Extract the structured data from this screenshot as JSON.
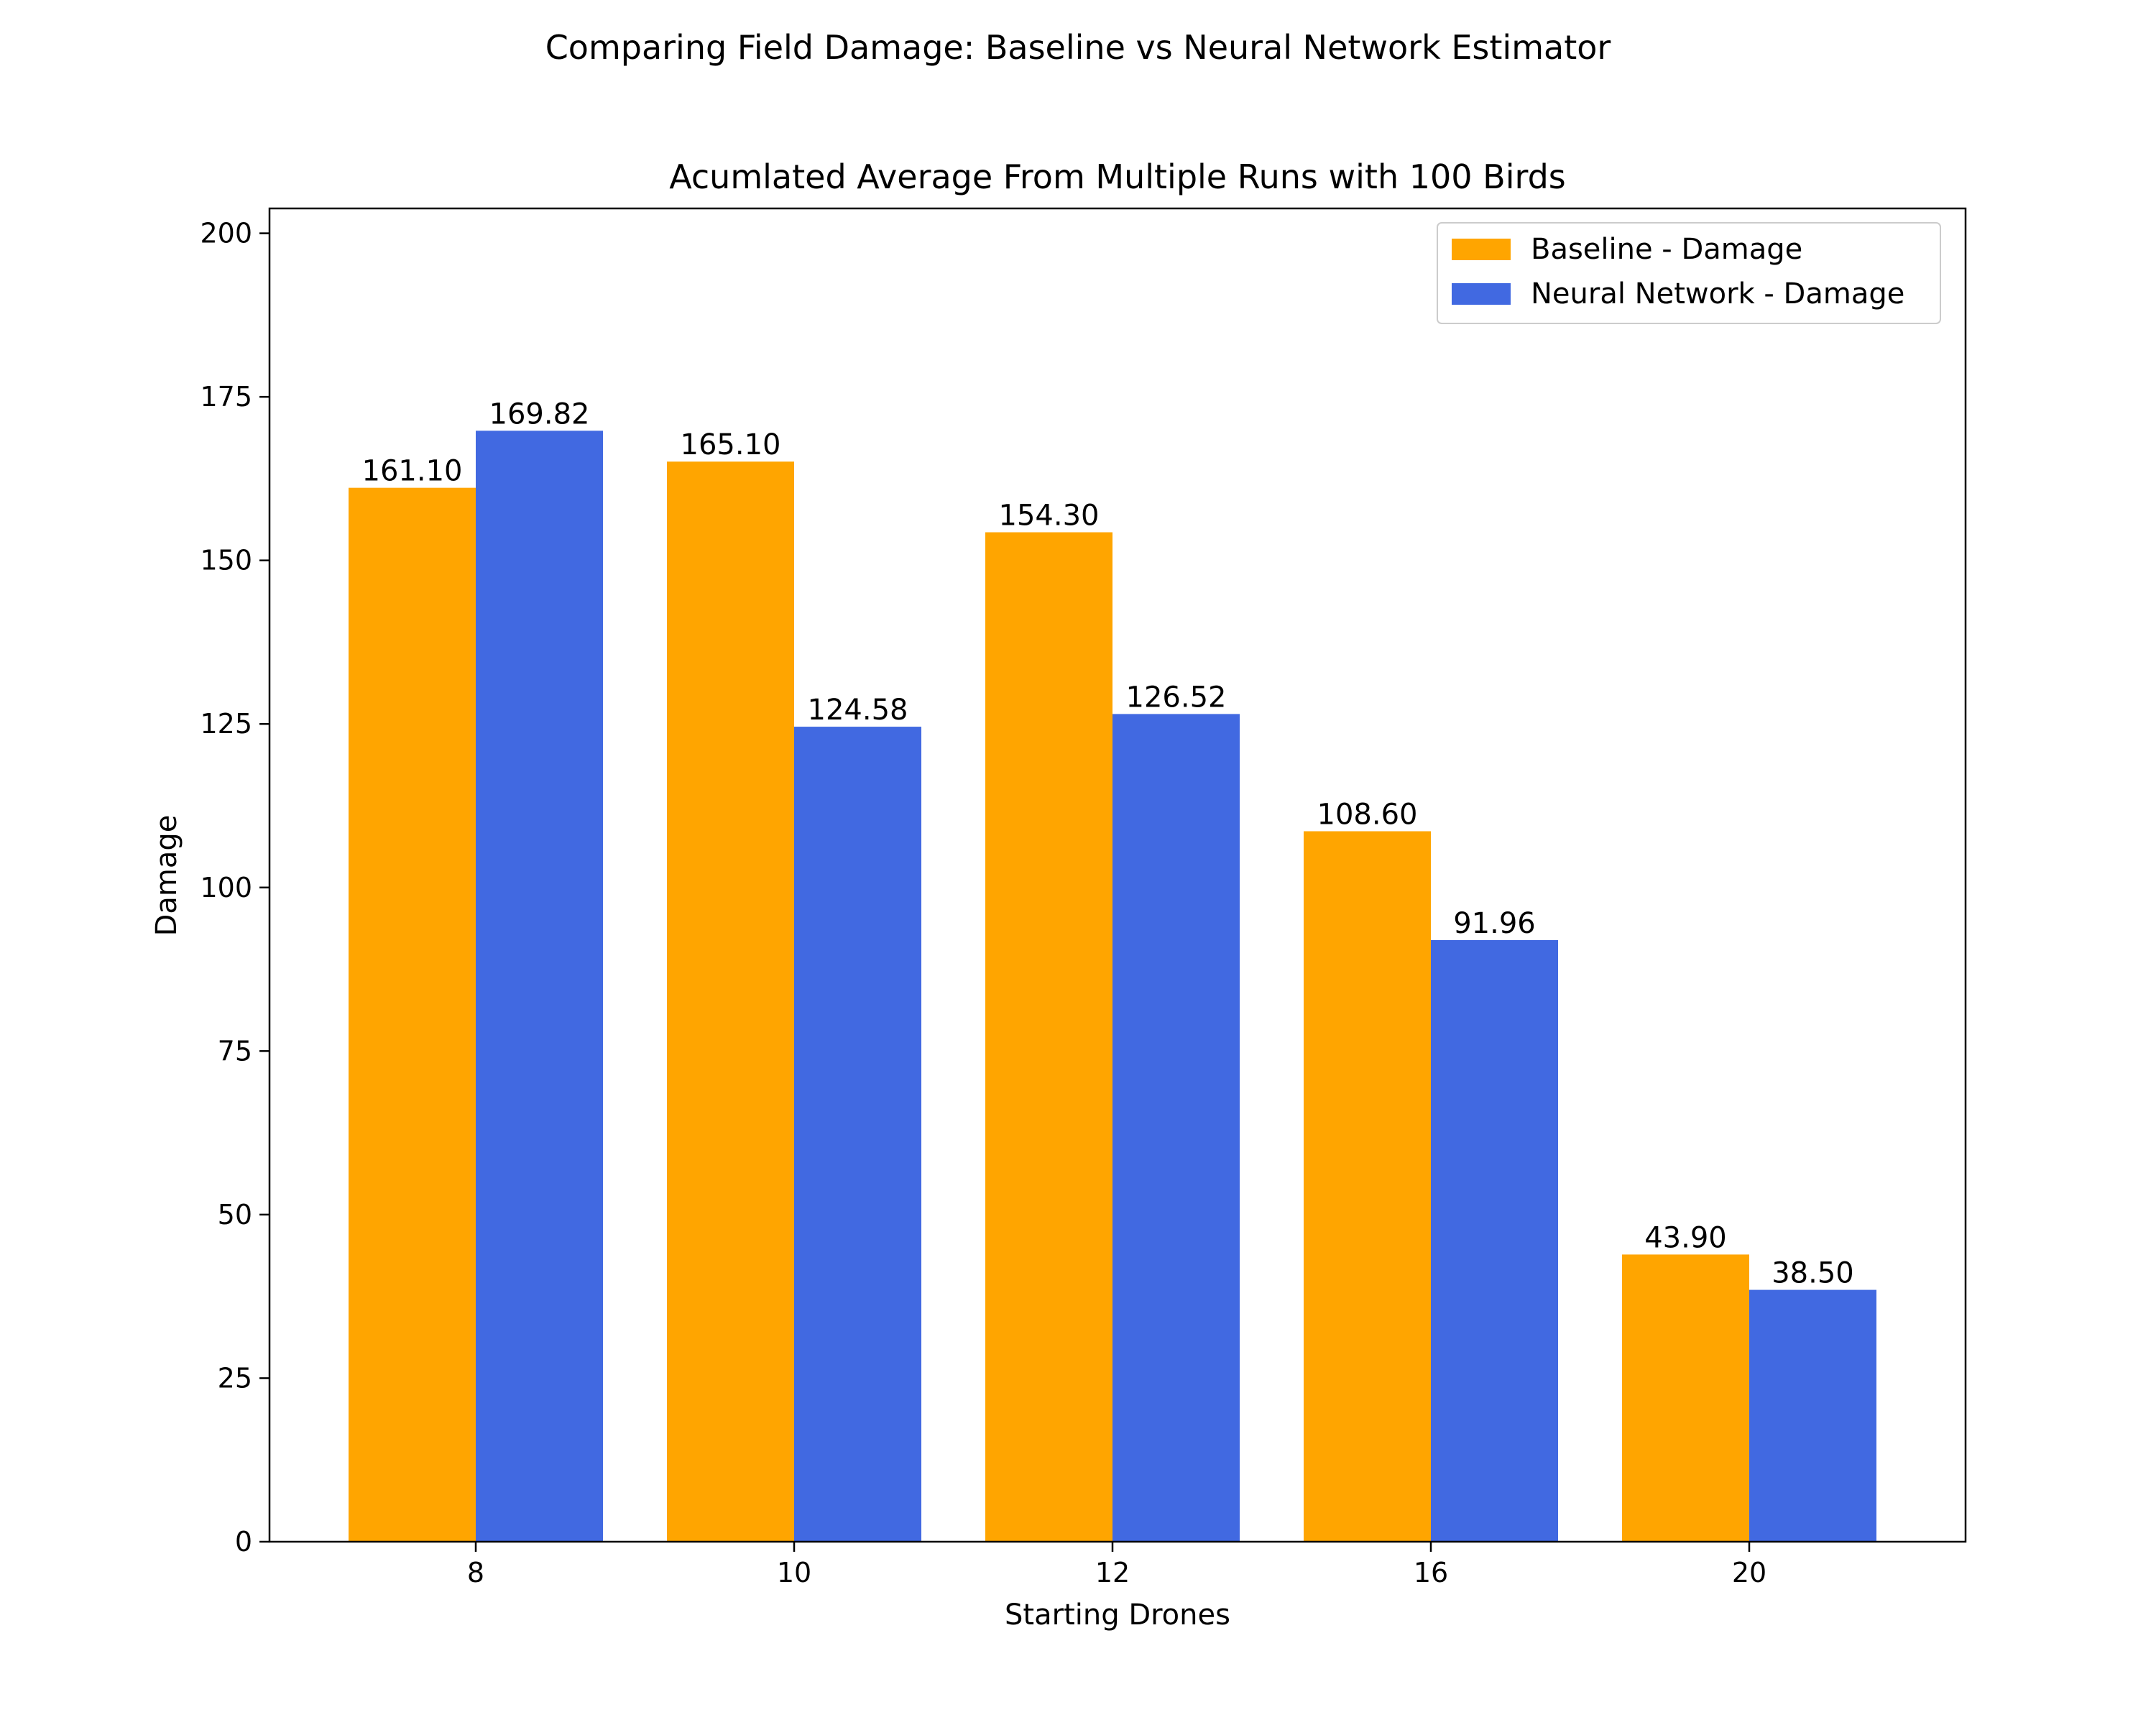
{
  "figure": {
    "suptitle": "Comparing Field Damage: Baseline vs Neural Network Estimator"
  },
  "chart_data": {
    "type": "bar",
    "title": "Acumlated Average From Multiple Runs with 100 Birds",
    "xlabel": "Starting Drones",
    "ylabel": "Damage",
    "categories": [
      "8",
      "10",
      "12",
      "16",
      "20"
    ],
    "series": [
      {
        "name": "Baseline - Damage",
        "color": "#FFA500",
        "values": [
          161.1,
          165.1,
          154.3,
          108.6,
          43.9
        ],
        "labels": [
          "161.10",
          "165.10",
          "154.30",
          "108.60",
          "43.90"
        ]
      },
      {
        "name": "Neural Network - Damage",
        "color": "#4169E1",
        "values": [
          169.82,
          124.58,
          126.52,
          91.96,
          38.5
        ],
        "labels": [
          "169.82",
          "124.58",
          "126.52",
          "91.96",
          "38.50"
        ]
      }
    ],
    "ylim": [
      0,
      203.8
    ],
    "yticks": [
      0,
      25,
      50,
      75,
      100,
      125,
      150,
      175,
      200
    ],
    "grid": false,
    "legend_position": "top-right"
  }
}
